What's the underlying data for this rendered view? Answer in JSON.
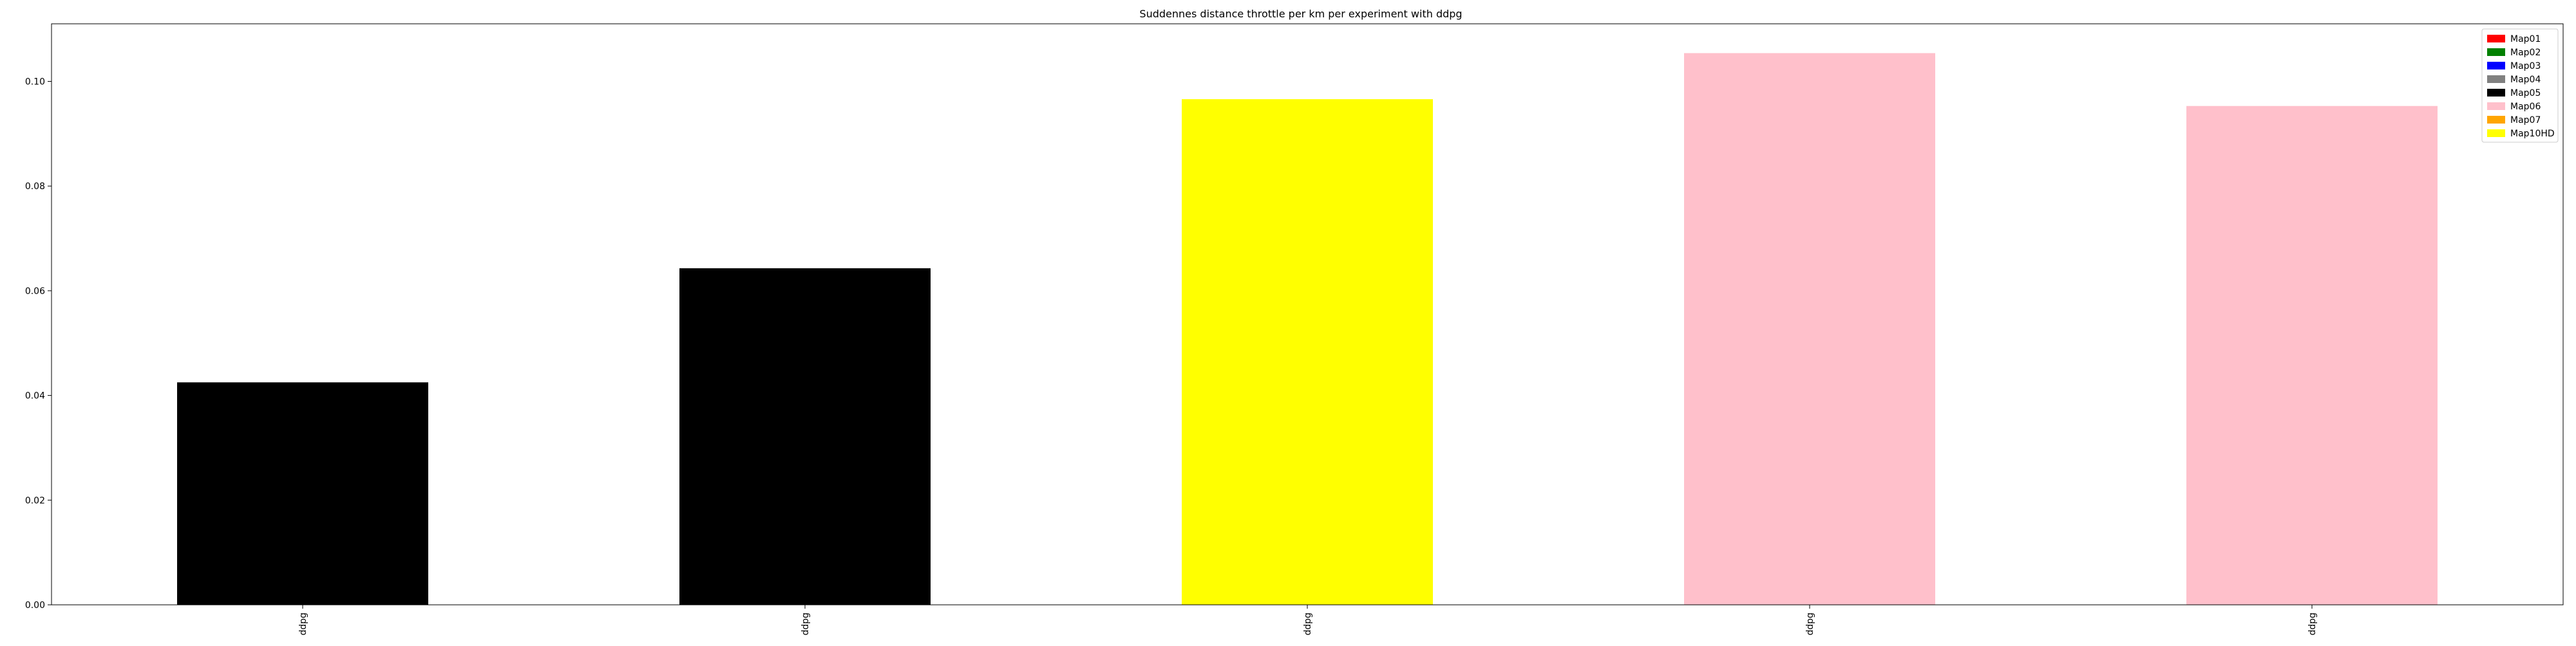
{
  "chart_data": {
    "type": "bar",
    "title": "Suddennes distance throttle per km per experiment with ddpg",
    "xlabel": "",
    "ylabel": "",
    "categories": [
      "ddpg",
      "ddpg",
      "ddpg",
      "ddpg",
      "ddpg"
    ],
    "values": [
      0.0425,
      0.0643,
      0.0966,
      0.1054,
      0.0953
    ],
    "bar_series": [
      "Map05",
      "Map05",
      "Map10HD",
      "Map06",
      "Map06"
    ],
    "ylim": [
      0,
      0.111
    ],
    "yticks": [
      0.0,
      0.02,
      0.04,
      0.06,
      0.08,
      0.1
    ],
    "ytick_labels": [
      "0.00",
      "0.02",
      "0.04",
      "0.06",
      "0.08",
      "0.10"
    ],
    "grid": false,
    "legend_position": "top-right",
    "legend": [
      {
        "name": "Map01",
        "color": "#ff0000"
      },
      {
        "name": "Map02",
        "color": "#008000"
      },
      {
        "name": "Map03",
        "color": "#0000ff"
      },
      {
        "name": "Map04",
        "color": "#808080"
      },
      {
        "name": "Map05",
        "color": "#000000"
      },
      {
        "name": "Map06",
        "color": "#ffc0cb"
      },
      {
        "name": "Map07",
        "color": "#ffa500"
      },
      {
        "name": "Map10HD",
        "color": "#ffff00"
      }
    ]
  }
}
